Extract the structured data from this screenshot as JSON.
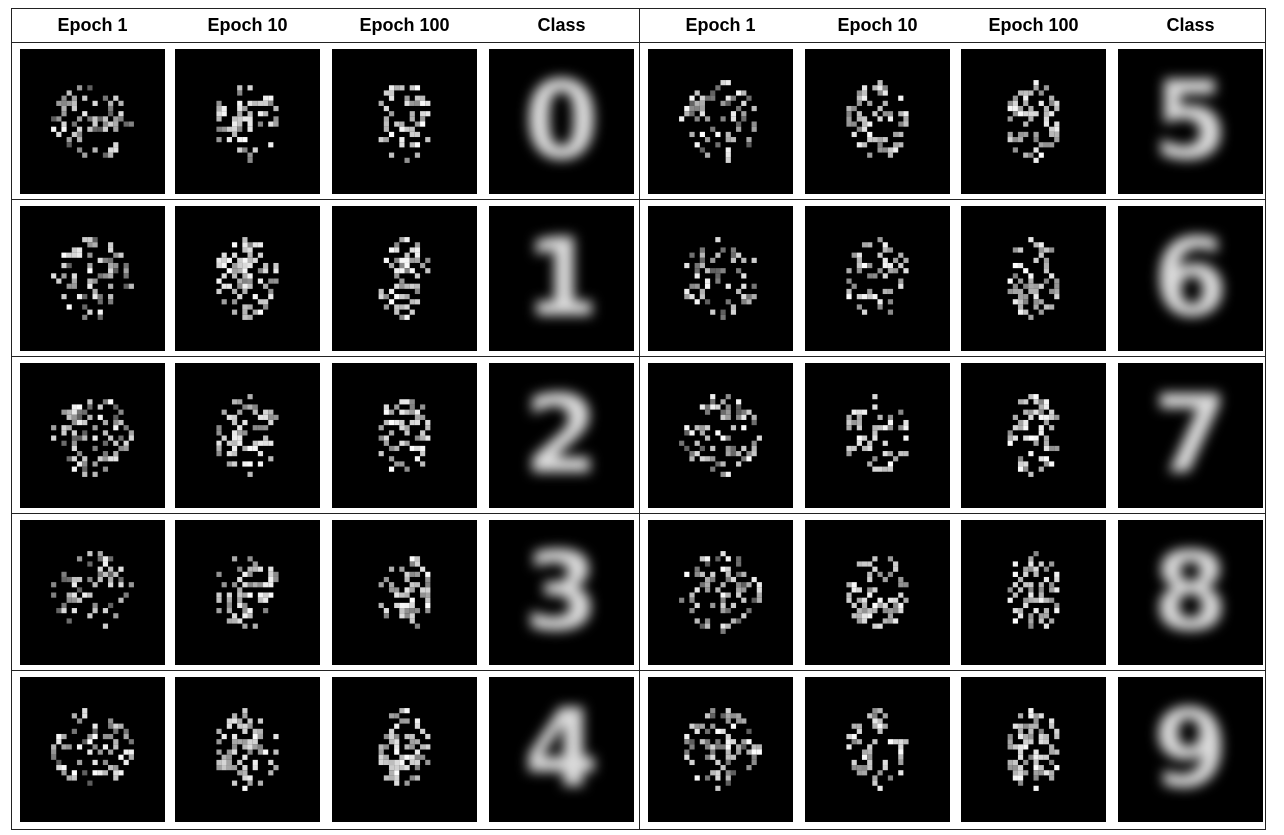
{
  "headers": [
    "Epoch 1",
    "Epoch 10",
    "Epoch 100",
    "Class"
  ],
  "left_classes": [
    "0",
    "1",
    "2",
    "3",
    "4"
  ],
  "right_classes": [
    "5",
    "6",
    "7",
    "8",
    "9"
  ],
  "columns": [
    "epoch-1",
    "epoch-10",
    "epoch-100",
    "class"
  ]
}
